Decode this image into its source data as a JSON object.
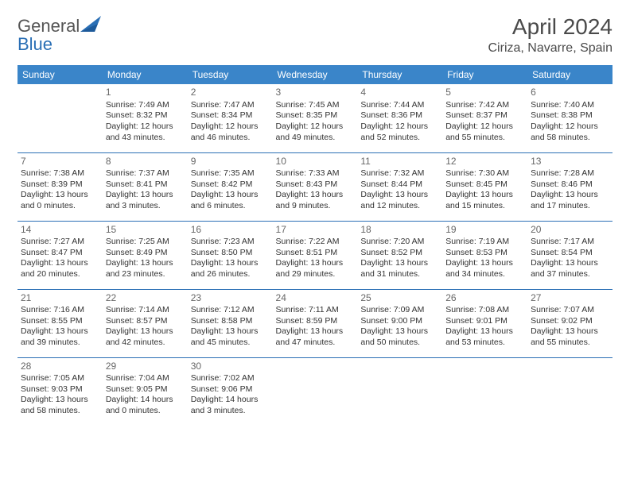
{
  "logo": {
    "text1": "General",
    "text2": "Blue"
  },
  "header": {
    "title": "April 2024",
    "location": "Ciriza, Navarre, Spain"
  },
  "colors": {
    "header_bg": "#3a85c9",
    "header_text": "#ffffff",
    "rule": "#2a6fb5",
    "body_text": "#333333",
    "daynum": "#666666",
    "title_text": "#4a4a4a"
  },
  "days_of_week": [
    "Sunday",
    "Monday",
    "Tuesday",
    "Wednesday",
    "Thursday",
    "Friday",
    "Saturday"
  ],
  "weeks": [
    [
      null,
      {
        "n": "1",
        "sr": "7:49 AM",
        "ss": "8:32 PM",
        "d1": "Daylight: 12 hours",
        "d2": "and 43 minutes."
      },
      {
        "n": "2",
        "sr": "7:47 AM",
        "ss": "8:34 PM",
        "d1": "Daylight: 12 hours",
        "d2": "and 46 minutes."
      },
      {
        "n": "3",
        "sr": "7:45 AM",
        "ss": "8:35 PM",
        "d1": "Daylight: 12 hours",
        "d2": "and 49 minutes."
      },
      {
        "n": "4",
        "sr": "7:44 AM",
        "ss": "8:36 PM",
        "d1": "Daylight: 12 hours",
        "d2": "and 52 minutes."
      },
      {
        "n": "5",
        "sr": "7:42 AM",
        "ss": "8:37 PM",
        "d1": "Daylight: 12 hours",
        "d2": "and 55 minutes."
      },
      {
        "n": "6",
        "sr": "7:40 AM",
        "ss": "8:38 PM",
        "d1": "Daylight: 12 hours",
        "d2": "and 58 minutes."
      }
    ],
    [
      {
        "n": "7",
        "sr": "7:38 AM",
        "ss": "8:39 PM",
        "d1": "Daylight: 13 hours",
        "d2": "and 0 minutes."
      },
      {
        "n": "8",
        "sr": "7:37 AM",
        "ss": "8:41 PM",
        "d1": "Daylight: 13 hours",
        "d2": "and 3 minutes."
      },
      {
        "n": "9",
        "sr": "7:35 AM",
        "ss": "8:42 PM",
        "d1": "Daylight: 13 hours",
        "d2": "and 6 minutes."
      },
      {
        "n": "10",
        "sr": "7:33 AM",
        "ss": "8:43 PM",
        "d1": "Daylight: 13 hours",
        "d2": "and 9 minutes."
      },
      {
        "n": "11",
        "sr": "7:32 AM",
        "ss": "8:44 PM",
        "d1": "Daylight: 13 hours",
        "d2": "and 12 minutes."
      },
      {
        "n": "12",
        "sr": "7:30 AM",
        "ss": "8:45 PM",
        "d1": "Daylight: 13 hours",
        "d2": "and 15 minutes."
      },
      {
        "n": "13",
        "sr": "7:28 AM",
        "ss": "8:46 PM",
        "d1": "Daylight: 13 hours",
        "d2": "and 17 minutes."
      }
    ],
    [
      {
        "n": "14",
        "sr": "7:27 AM",
        "ss": "8:47 PM",
        "d1": "Daylight: 13 hours",
        "d2": "and 20 minutes."
      },
      {
        "n": "15",
        "sr": "7:25 AM",
        "ss": "8:49 PM",
        "d1": "Daylight: 13 hours",
        "d2": "and 23 minutes."
      },
      {
        "n": "16",
        "sr": "7:23 AM",
        "ss": "8:50 PM",
        "d1": "Daylight: 13 hours",
        "d2": "and 26 minutes."
      },
      {
        "n": "17",
        "sr": "7:22 AM",
        "ss": "8:51 PM",
        "d1": "Daylight: 13 hours",
        "d2": "and 29 minutes."
      },
      {
        "n": "18",
        "sr": "7:20 AM",
        "ss": "8:52 PM",
        "d1": "Daylight: 13 hours",
        "d2": "and 31 minutes."
      },
      {
        "n": "19",
        "sr": "7:19 AM",
        "ss": "8:53 PM",
        "d1": "Daylight: 13 hours",
        "d2": "and 34 minutes."
      },
      {
        "n": "20",
        "sr": "7:17 AM",
        "ss": "8:54 PM",
        "d1": "Daylight: 13 hours",
        "d2": "and 37 minutes."
      }
    ],
    [
      {
        "n": "21",
        "sr": "7:16 AM",
        "ss": "8:55 PM",
        "d1": "Daylight: 13 hours",
        "d2": "and 39 minutes."
      },
      {
        "n": "22",
        "sr": "7:14 AM",
        "ss": "8:57 PM",
        "d1": "Daylight: 13 hours",
        "d2": "and 42 minutes."
      },
      {
        "n": "23",
        "sr": "7:12 AM",
        "ss": "8:58 PM",
        "d1": "Daylight: 13 hours",
        "d2": "and 45 minutes."
      },
      {
        "n": "24",
        "sr": "7:11 AM",
        "ss": "8:59 PM",
        "d1": "Daylight: 13 hours",
        "d2": "and 47 minutes."
      },
      {
        "n": "25",
        "sr": "7:09 AM",
        "ss": "9:00 PM",
        "d1": "Daylight: 13 hours",
        "d2": "and 50 minutes."
      },
      {
        "n": "26",
        "sr": "7:08 AM",
        "ss": "9:01 PM",
        "d1": "Daylight: 13 hours",
        "d2": "and 53 minutes."
      },
      {
        "n": "27",
        "sr": "7:07 AM",
        "ss": "9:02 PM",
        "d1": "Daylight: 13 hours",
        "d2": "and 55 minutes."
      }
    ],
    [
      {
        "n": "28",
        "sr": "7:05 AM",
        "ss": "9:03 PM",
        "d1": "Daylight: 13 hours",
        "d2": "and 58 minutes."
      },
      {
        "n": "29",
        "sr": "7:04 AM",
        "ss": "9:05 PM",
        "d1": "Daylight: 14 hours",
        "d2": "and 0 minutes."
      },
      {
        "n": "30",
        "sr": "7:02 AM",
        "ss": "9:06 PM",
        "d1": "Daylight: 14 hours",
        "d2": "and 3 minutes."
      },
      null,
      null,
      null,
      null
    ]
  ],
  "labels": {
    "sunrise_prefix": "Sunrise: ",
    "sunset_prefix": "Sunset: "
  }
}
